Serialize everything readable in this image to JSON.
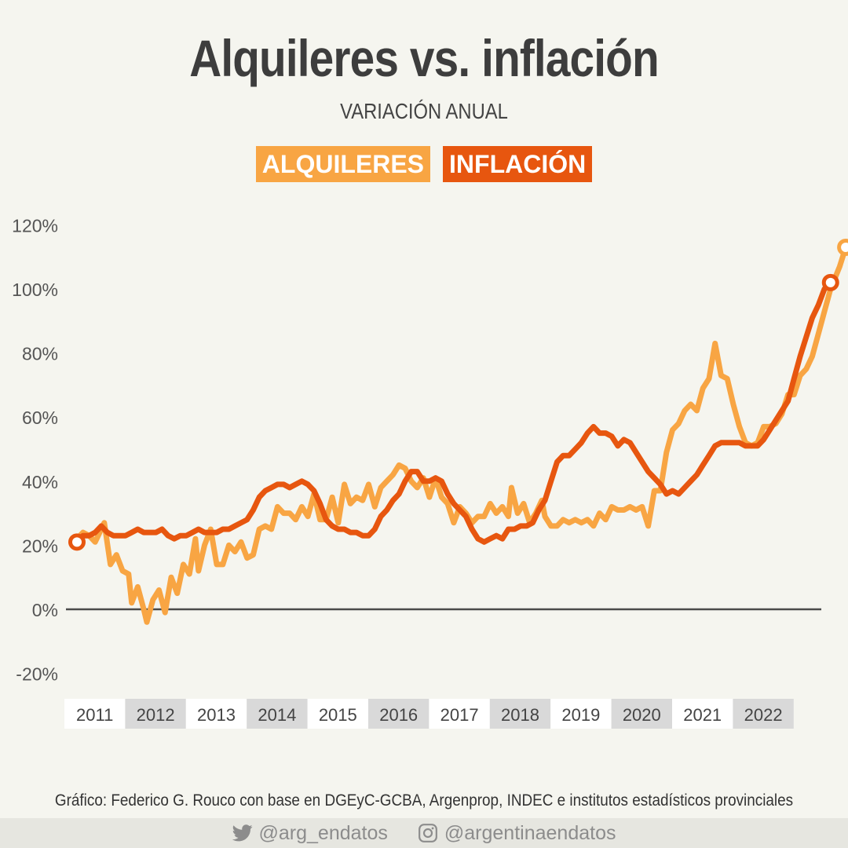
{
  "title": "Alquileres vs. inflación",
  "subtitle": "VARIACIÓN ANUAL",
  "legend": {
    "alquileres": "ALQUILERES",
    "inflacion": "INFLACIÓN"
  },
  "credit": "Gráfico: Federico G. Rouco con base en DGEyC-GCBA, Argenprop, INDEC e institutos estadísticos provinciales",
  "social": {
    "twitter": "@arg_endatos",
    "instagram": "@argentinaendatos"
  },
  "colors": {
    "alquileres": "#f8a543",
    "inflacion": "#e7560f",
    "zero_line": "#4a4a4a",
    "band_light": "#ffffff",
    "band_dark": "#d9d9d9"
  },
  "chart_data": {
    "type": "line",
    "ylim": [
      -20,
      120
    ],
    "y_ticks": [
      "-20%",
      "0%",
      "20%",
      "40%",
      "60%",
      "80%",
      "100%",
      "120%"
    ],
    "y_tick_values": [
      -20,
      0,
      20,
      40,
      60,
      80,
      100,
      120
    ],
    "x_start": 2011,
    "x_end": 2023.95,
    "year_labels": [
      "2011",
      "2012",
      "2013",
      "2014",
      "2015",
      "2016",
      "2017",
      "2018",
      "2019",
      "2020",
      "2021",
      "2022"
    ],
    "series": [
      {
        "name": "ALQUILERES",
        "points": [
          [
            2011.0,
            22
          ],
          [
            2011.1,
            24
          ],
          [
            2011.2,
            23
          ],
          [
            2011.3,
            21
          ],
          [
            2011.45,
            27
          ],
          [
            2011.55,
            14
          ],
          [
            2011.65,
            17
          ],
          [
            2011.75,
            12
          ],
          [
            2011.85,
            11
          ],
          [
            2011.9,
            2
          ],
          [
            2012.0,
            7
          ],
          [
            2012.1,
            0
          ],
          [
            2012.15,
            -4
          ],
          [
            2012.25,
            3
          ],
          [
            2012.35,
            6
          ],
          [
            2012.45,
            -1
          ],
          [
            2012.55,
            10
          ],
          [
            2012.65,
            5
          ],
          [
            2012.75,
            14
          ],
          [
            2012.85,
            11
          ],
          [
            2012.95,
            22
          ],
          [
            2013.0,
            12
          ],
          [
            2013.1,
            20
          ],
          [
            2013.2,
            25
          ],
          [
            2013.3,
            14
          ],
          [
            2013.4,
            14
          ],
          [
            2013.5,
            20
          ],
          [
            2013.6,
            18
          ],
          [
            2013.7,
            21
          ],
          [
            2013.8,
            16
          ],
          [
            2013.9,
            17
          ],
          [
            2014.0,
            25
          ],
          [
            2014.1,
            26
          ],
          [
            2014.2,
            25
          ],
          [
            2014.3,
            32
          ],
          [
            2014.4,
            30
          ],
          [
            2014.5,
            30
          ],
          [
            2014.6,
            28
          ],
          [
            2014.7,
            32
          ],
          [
            2014.8,
            29
          ],
          [
            2014.9,
            36
          ],
          [
            2015.0,
            28
          ],
          [
            2015.1,
            28
          ],
          [
            2015.2,
            35
          ],
          [
            2015.3,
            27
          ],
          [
            2015.4,
            39
          ],
          [
            2015.5,
            33
          ],
          [
            2015.6,
            35
          ],
          [
            2015.7,
            34
          ],
          [
            2015.8,
            39
          ],
          [
            2015.9,
            32
          ],
          [
            2016.0,
            38
          ],
          [
            2016.1,
            40
          ],
          [
            2016.2,
            42
          ],
          [
            2016.3,
            45
          ],
          [
            2016.4,
            44
          ],
          [
            2016.5,
            40
          ],
          [
            2016.6,
            38
          ],
          [
            2016.7,
            41
          ],
          [
            2016.8,
            35
          ],
          [
            2016.9,
            41
          ],
          [
            2017.0,
            35
          ],
          [
            2017.1,
            33
          ],
          [
            2017.2,
            27
          ],
          [
            2017.3,
            32
          ],
          [
            2017.4,
            30
          ],
          [
            2017.5,
            27
          ],
          [
            2017.6,
            29
          ],
          [
            2017.7,
            29
          ],
          [
            2017.8,
            33
          ],
          [
            2017.9,
            30
          ],
          [
            2018.0,
            32
          ],
          [
            2018.1,
            29
          ],
          [
            2018.15,
            38
          ],
          [
            2018.25,
            30
          ],
          [
            2018.35,
            33
          ],
          [
            2018.45,
            27
          ],
          [
            2018.55,
            30
          ],
          [
            2018.65,
            34
          ],
          [
            2018.7,
            29
          ],
          [
            2018.8,
            26
          ],
          [
            2018.9,
            26
          ],
          [
            2019.0,
            28
          ],
          [
            2019.1,
            27
          ],
          [
            2019.2,
            28
          ],
          [
            2019.3,
            27
          ],
          [
            2019.4,
            28
          ],
          [
            2019.5,
            26
          ],
          [
            2019.6,
            30
          ],
          [
            2019.7,
            28
          ],
          [
            2019.8,
            32
          ],
          [
            2019.9,
            31
          ],
          [
            2020.0,
            31
          ],
          [
            2020.1,
            32
          ],
          [
            2020.2,
            31
          ],
          [
            2020.3,
            32
          ],
          [
            2020.4,
            26
          ],
          [
            2020.5,
            37
          ],
          [
            2020.6,
            37
          ],
          [
            2020.7,
            49
          ],
          [
            2020.8,
            56
          ],
          [
            2020.9,
            58
          ],
          [
            2021.0,
            62
          ],
          [
            2021.1,
            64
          ],
          [
            2021.2,
            62
          ],
          [
            2021.3,
            69
          ],
          [
            2021.4,
            72
          ],
          [
            2021.5,
            83
          ],
          [
            2021.6,
            73
          ],
          [
            2021.7,
            72
          ],
          [
            2021.8,
            64
          ],
          [
            2021.9,
            57
          ],
          [
            2022.0,
            52
          ],
          [
            2022.1,
            51
          ],
          [
            2022.2,
            52
          ],
          [
            2022.3,
            57
          ],
          [
            2022.4,
            57
          ],
          [
            2022.5,
            58
          ],
          [
            2022.6,
            61
          ],
          [
            2022.7,
            67
          ],
          [
            2022.8,
            67
          ],
          [
            2022.9,
            73
          ],
          [
            2023.0,
            75
          ],
          [
            2023.1,
            79
          ],
          [
            2023.2,
            86
          ],
          [
            2023.3,
            93
          ],
          [
            2023.4,
            100
          ],
          [
            2023.55,
            107
          ],
          [
            2023.65,
            113
          ]
        ]
      },
      {
        "name": "INFLACIÓN",
        "points": [
          [
            2011.0,
            21
          ],
          [
            2011.1,
            23
          ],
          [
            2011.2,
            23
          ],
          [
            2011.3,
            24
          ],
          [
            2011.4,
            26
          ],
          [
            2011.5,
            24
          ],
          [
            2011.6,
            23
          ],
          [
            2011.7,
            23
          ],
          [
            2011.8,
            23
          ],
          [
            2011.9,
            24
          ],
          [
            2012.0,
            25
          ],
          [
            2012.1,
            24
          ],
          [
            2012.2,
            24
          ],
          [
            2012.3,
            24
          ],
          [
            2012.4,
            25
          ],
          [
            2012.5,
            23
          ],
          [
            2012.6,
            22
          ],
          [
            2012.7,
            23
          ],
          [
            2012.8,
            23
          ],
          [
            2012.9,
            24
          ],
          [
            2013.0,
            25
          ],
          [
            2013.1,
            24
          ],
          [
            2013.2,
            24
          ],
          [
            2013.3,
            24
          ],
          [
            2013.4,
            25
          ],
          [
            2013.5,
            25
          ],
          [
            2013.6,
            26
          ],
          [
            2013.7,
            27
          ],
          [
            2013.8,
            28
          ],
          [
            2013.9,
            31
          ],
          [
            2014.0,
            35
          ],
          [
            2014.1,
            37
          ],
          [
            2014.2,
            38
          ],
          [
            2014.3,
            39
          ],
          [
            2014.4,
            39
          ],
          [
            2014.5,
            38
          ],
          [
            2014.6,
            39
          ],
          [
            2014.7,
            40
          ],
          [
            2014.8,
            39
          ],
          [
            2014.9,
            37
          ],
          [
            2015.0,
            33
          ],
          [
            2015.1,
            28
          ],
          [
            2015.2,
            26
          ],
          [
            2015.3,
            25
          ],
          [
            2015.4,
            25
          ],
          [
            2015.5,
            24
          ],
          [
            2015.6,
            24
          ],
          [
            2015.7,
            23
          ],
          [
            2015.8,
            23
          ],
          [
            2015.9,
            25
          ],
          [
            2016.0,
            29
          ],
          [
            2016.1,
            31
          ],
          [
            2016.2,
            34
          ],
          [
            2016.3,
            36
          ],
          [
            2016.4,
            40
          ],
          [
            2016.5,
            43
          ],
          [
            2016.6,
            43
          ],
          [
            2016.7,
            40
          ],
          [
            2016.8,
            40
          ],
          [
            2016.9,
            41
          ],
          [
            2017.0,
            40
          ],
          [
            2017.1,
            36
          ],
          [
            2017.2,
            33
          ],
          [
            2017.3,
            31
          ],
          [
            2017.4,
            29
          ],
          [
            2017.5,
            25
          ],
          [
            2017.6,
            22
          ],
          [
            2017.7,
            21
          ],
          [
            2017.8,
            22
          ],
          [
            2017.9,
            23
          ],
          [
            2018.0,
            22
          ],
          [
            2018.1,
            25
          ],
          [
            2018.2,
            25
          ],
          [
            2018.3,
            26
          ],
          [
            2018.4,
            26
          ],
          [
            2018.5,
            27
          ],
          [
            2018.6,
            31
          ],
          [
            2018.7,
            34
          ],
          [
            2018.8,
            40
          ],
          [
            2018.9,
            46
          ],
          [
            2019.0,
            48
          ],
          [
            2019.1,
            48
          ],
          [
            2019.2,
            50
          ],
          [
            2019.3,
            52
          ],
          [
            2019.4,
            55
          ],
          [
            2019.5,
            57
          ],
          [
            2019.6,
            55
          ],
          [
            2019.7,
            55
          ],
          [
            2019.8,
            54
          ],
          [
            2019.9,
            51
          ],
          [
            2020.0,
            53
          ],
          [
            2020.1,
            52
          ],
          [
            2020.2,
            49
          ],
          [
            2020.3,
            46
          ],
          [
            2020.4,
            43
          ],
          [
            2020.5,
            41
          ],
          [
            2020.6,
            39
          ],
          [
            2020.7,
            36
          ],
          [
            2020.8,
            37
          ],
          [
            2020.9,
            36
          ],
          [
            2021.0,
            38
          ],
          [
            2021.1,
            40
          ],
          [
            2021.2,
            42
          ],
          [
            2021.3,
            45
          ],
          [
            2021.4,
            48
          ],
          [
            2021.5,
            51
          ],
          [
            2021.6,
            52
          ],
          [
            2021.7,
            52
          ],
          [
            2021.8,
            52
          ],
          [
            2021.9,
            52
          ],
          [
            2022.0,
            51
          ],
          [
            2022.1,
            51
          ],
          [
            2022.2,
            51
          ],
          [
            2022.3,
            53
          ],
          [
            2022.4,
            56
          ],
          [
            2022.5,
            59
          ],
          [
            2022.6,
            62
          ],
          [
            2022.7,
            65
          ],
          [
            2022.8,
            72
          ],
          [
            2022.9,
            79
          ],
          [
            2023.0,
            85
          ],
          [
            2023.1,
            91
          ],
          [
            2023.2,
            95
          ],
          [
            2023.3,
            100
          ],
          [
            2023.4,
            102
          ]
        ]
      }
    ]
  }
}
